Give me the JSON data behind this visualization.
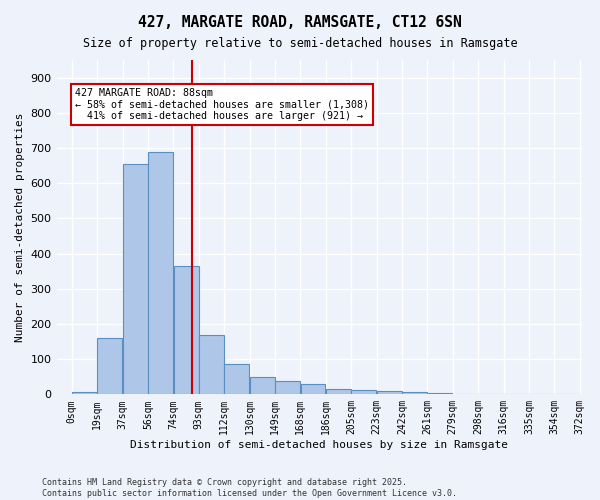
{
  "title1": "427, MARGATE ROAD, RAMSGATE, CT12 6SN",
  "title2": "Size of property relative to semi-detached houses in Ramsgate",
  "xlabel": "Distribution of semi-detached houses by size in Ramsgate",
  "ylabel": "Number of semi-detached properties",
  "bin_labels": [
    "0sqm",
    "19sqm",
    "37sqm",
    "56sqm",
    "74sqm",
    "93sqm",
    "112sqm",
    "130sqm",
    "149sqm",
    "168sqm",
    "186sqm",
    "205sqm",
    "223sqm",
    "242sqm",
    "261sqm",
    "279sqm",
    "298sqm",
    "316sqm",
    "335sqm",
    "354sqm",
    "372sqm"
  ],
  "bar_values": [
    8,
    160,
    655,
    690,
    365,
    170,
    87,
    48,
    37,
    29,
    15,
    13,
    10,
    7,
    5,
    2,
    1,
    1,
    0,
    0
  ],
  "bar_color": "#aec6e8",
  "bar_edge_color": "#5a8fc2",
  "background_color": "#eef2fb",
  "grid_color": "#ffffff",
  "vline_x": 88,
  "vline_color": "#cc0000",
  "annotation_text": "427 MARGATE ROAD: 88sqm\n← 58% of semi-detached houses are smaller (1,308)\n  41% of semi-detached houses are larger (921) →",
  "annotation_box_color": "#cc0000",
  "ylim": [
    0,
    950
  ],
  "yticks": [
    0,
    100,
    200,
    300,
    400,
    500,
    600,
    700,
    800,
    900
  ],
  "footnote": "Contains HM Land Registry data © Crown copyright and database right 2025.\nContains public sector information licensed under the Open Government Licence v3.0.",
  "bin_width": 18.6
}
